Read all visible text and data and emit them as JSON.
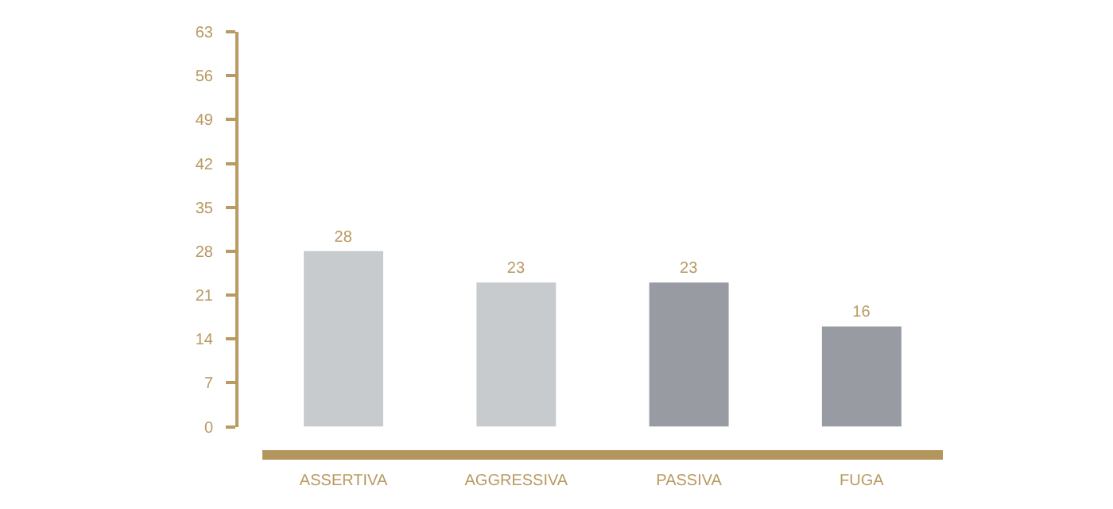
{
  "chart_data": {
    "type": "bar",
    "categories": [
      "ASSERTIVA",
      "AGGRESSIVA",
      "PASSIVA",
      "FUGA"
    ],
    "values": [
      28,
      23,
      23,
      16
    ],
    "colors": [
      "#c8cbce",
      "#c8cbce",
      "#989ba2",
      "#989ba2"
    ],
    "data_labels": true,
    "ylim": [
      0,
      63
    ],
    "yticks": [
      0,
      7,
      14,
      21,
      28,
      35,
      42,
      49,
      56,
      63
    ]
  }
}
